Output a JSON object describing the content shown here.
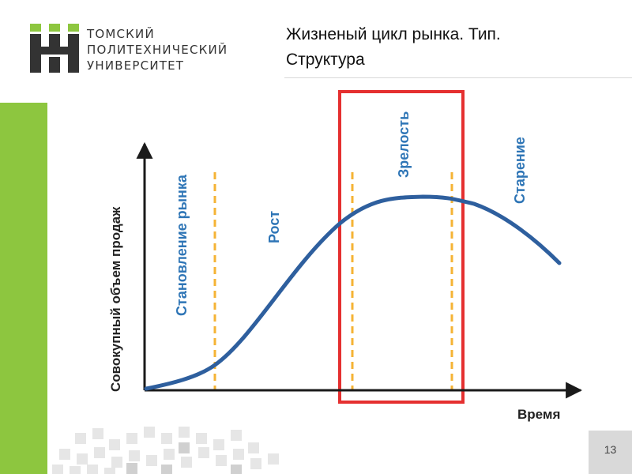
{
  "header": {
    "university_name": "ТОМСКИЙ\nПОЛИТЕХНИЧЕСКИЙ\nУНИВЕРСИТЕТ",
    "slide_title": "Жизненый цикл рынка. Тип.\nСтруктура"
  },
  "diagram": {
    "y_axis_label": "Совокупный объем продаж",
    "x_axis_label": "Время",
    "phases": [
      {
        "label": "Становление рынка"
      },
      {
        "label": "Рост"
      },
      {
        "label": "Зрелость",
        "highlighted": true
      },
      {
        "label": "Старение"
      }
    ]
  },
  "colors": {
    "curve": "#2e5f9e",
    "divider": "#f5b335",
    "highlight_frame": "#e53030",
    "phase_text": "#2e75b6",
    "accent_green": "#8dc63f"
  },
  "footer": {
    "page_number": "13"
  }
}
